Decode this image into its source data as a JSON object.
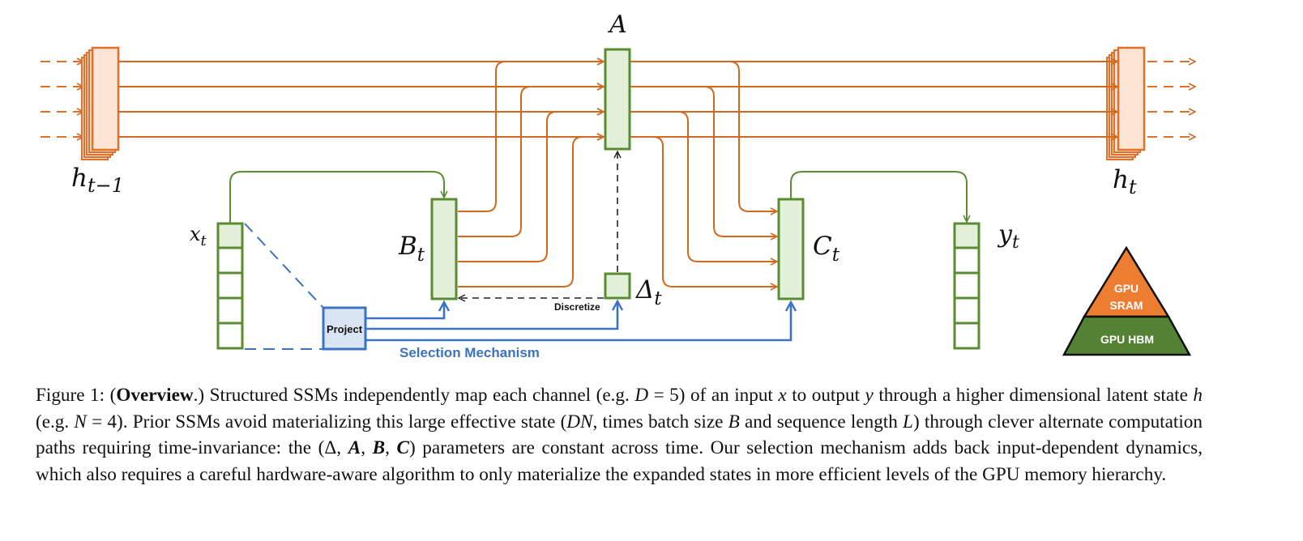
{
  "diagram": {
    "labels": {
      "A": "A",
      "h_prev_main": "h",
      "h_prev_sub": "t−1",
      "h_next_main": "h",
      "h_next_sub": "t",
      "x_main": "x",
      "x_sub": "t",
      "B_main": "B",
      "B_sub": "t",
      "C_main": "C",
      "C_sub": "t",
      "y_main": "y",
      "y_sub": "t",
      "delta_main": "Δ",
      "delta_sub": "t",
      "discretize": "Discretize",
      "project": "Project",
      "selection_mechanism": "Selection Mechanism"
    },
    "memory_pyramid": {
      "sram_line1": "GPU",
      "sram_line2": "SRAM",
      "hbm": "GPU HBM"
    },
    "colors": {
      "state_orange": "#e0702a",
      "arrow_orange": "#d2691e",
      "block_green": "#5b8c32",
      "block_fill": "#e2f0d9",
      "project_blue": "#3b72c4",
      "project_fill": "#dae5f3",
      "sram_fill": "#ed7d31",
      "hbm_fill": "#548235"
    }
  },
  "caption": {
    "figure_label": "Figure 1: (",
    "bold_title": "Overview",
    "p1": ".) Structured SSMs independently map each channel (e.g. ",
    "D_expr": "D",
    "p2": " = 5) of an input ",
    "x": "x",
    "p3": " to output ",
    "y": "y",
    "p4": " through a higher dimensional latent state ",
    "h": "h",
    "p5": " (e.g. ",
    "N_expr": "N",
    "p6": " = 4). Prior SSMs avoid materializing this large effective state (",
    "DN": "DN",
    "p7": ", times batch size ",
    "B": "B",
    "p8": " and sequence length ",
    "L": "L",
    "p9": ") through clever alternate computation paths requiring time-invariance: the (Δ, ",
    "A_b": "A",
    "comma1": ", ",
    "B_b": "B",
    "comma2": ", ",
    "C_b": "C",
    "p10": ") parameters are constant across time. Our selection mechanism adds back input-dependent dynamics, which also requires a careful hardware-aware algorithm to only materialize the expanded states in more efficient levels of the GPU memory hierarchy."
  }
}
